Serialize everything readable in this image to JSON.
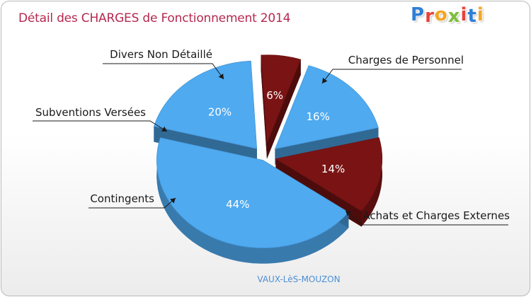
{
  "title": "Détail des CHARGES de Fonctionnement 2014",
  "logo": {
    "text": "Proxiti",
    "letters": [
      "P",
      "r",
      "o",
      "x",
      "i",
      "t",
      "i"
    ],
    "colors": [
      "#2e7fd6",
      "#e8423a",
      "#f5a623",
      "#7cbf3a",
      "#e8423a",
      "#2e7fd6",
      "#f5a623"
    ]
  },
  "subtitle": "VAUX-LèS-MOUZON",
  "colors": {
    "blue": "#4faaf0",
    "dark_red": "#7a1414",
    "title": "#b5284f"
  },
  "chart_data": {
    "type": "pie",
    "title": "Détail des CHARGES de Fonctionnement 2014",
    "slices": [
      {
        "label": "Charges de Personnel",
        "value": 14,
        "pct_label": "14%",
        "color": "#7a1414"
      },
      {
        "label": "Achats et Charges Externes",
        "value": 44,
        "pct_label": "44%",
        "color": "#4faaf0"
      },
      {
        "label": "Contingents",
        "value": 20,
        "pct_label": "20%",
        "color": "#4faaf0"
      },
      {
        "label": "Subventions Versées",
        "value": 6,
        "pct_label": "6%",
        "color": "#7a1414"
      },
      {
        "label": "Divers Non Détaillé",
        "value": 16,
        "pct_label": "16%",
        "color": "#4faaf0"
      }
    ],
    "legend_placement": "callouts"
  }
}
